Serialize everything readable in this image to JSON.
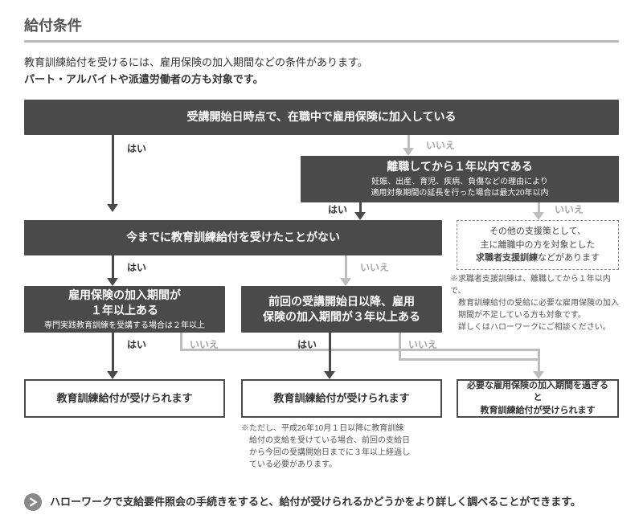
{
  "title": "給付条件",
  "intro_line1": "教育訓練給付を受けるには、雇用保険の加入期間などの条件があります。",
  "intro_line2": "パート・アルバイトや派遣労働者の方も対象です。",
  "labels": {
    "yes": "はい",
    "no": "いいえ"
  },
  "boxes": {
    "n1": {
      "main": "受講開始日時点で、在職中で雇用保険に加入している"
    },
    "n2": {
      "main": "離職してから１年以内である",
      "sub": "妊娠、出産、育児、疾病、負傷などの理由により\n適用対象期間の延長を行った場合は最大20年以内"
    },
    "n3": {
      "main": "今までに教育訓練給付を受けたことがない"
    },
    "n4": {
      "main": "雇用保険の加入期間が\n１年以上ある",
      "sub": "専門実践教育訓練を受講する場合は２年以上"
    },
    "n5": {
      "main": "前回の受講開始日以降、雇用\n保険の加入期間が３年以上ある"
    },
    "r1": {
      "text": "教育訓練給付が受けられます"
    },
    "r2": {
      "text": "教育訓練給付が受けられます"
    },
    "r3": {
      "text": "必要な雇用保険の加入期間を過ぎると\n教育訓練給付が受けられます"
    },
    "side": {
      "text": "その他の支援策として、\n主に離職中の方を対象とした\n求職者支援訓練などがあります",
      "bold": "求職者支援訓練"
    }
  },
  "notes": {
    "side": "※求職者支援訓練は、離職してから１年以内で、\n　教育訓練給付の受給に必要な雇用保険の加入\n　期間が不足している方も対象です。\n　詳しくはハローワークにご相談ください。",
    "under_r2": "※ただし、平成26年10月１日以降に教育訓練\n　給付の支給を受けている場合、前回の支給日\n　から今回の受講開始日までに３年以上経過し\n　ている必要があります。"
  },
  "footer": "ハローワークで支給要件照会の手続きをすると、給付が受けられるかどうかをより詳しく調べることができます。",
  "style": {
    "dark": "#4a4a4a",
    "light_arrow": "#bdbdbd",
    "dashed_border": "#888888",
    "no_label": "#a7a7a7",
    "font_main": 14,
    "font_body": 12,
    "font_small": 10
  }
}
